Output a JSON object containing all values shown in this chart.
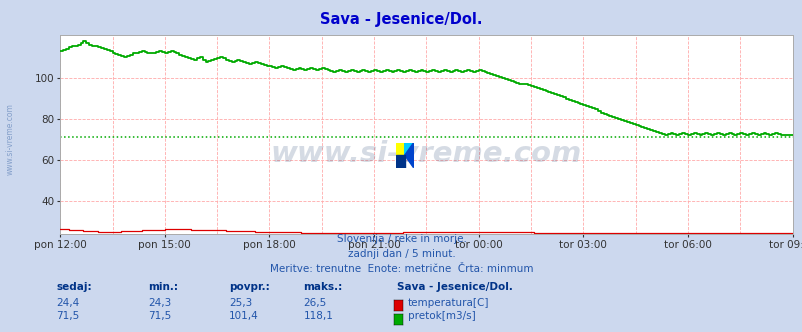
{
  "title": "Sava - Jesenice/Dol.",
  "title_color": "#0000cc",
  "bg_color": "#ccd8ee",
  "plot_bg_color": "#ffffff",
  "grid_color": "#ffaaaa",
  "x_tick_labels": [
    "pon 12:00",
    "pon 15:00",
    "pon 18:00",
    "pon 21:00",
    "tor 00:00",
    "tor 03:00",
    "tor 06:00",
    "tor 09:00"
  ],
  "x_tick_positions": [
    0,
    36,
    72,
    108,
    144,
    180,
    216,
    252
  ],
  "y_ticks": [
    40,
    60,
    80,
    100
  ],
  "y_min": 24.0,
  "y_max": 121.0,
  "temp_color": "#dd0000",
  "flow_color": "#00aa00",
  "avg_line_color": "#00aa00",
  "avg_line_value": 71.5,
  "watermark_text": "www.si-vreme.com",
  "watermark_color": "#1a3a6a",
  "watermark_alpha": 0.18,
  "subtitle1": "Slovenija / reke in morje.",
  "subtitle2": "zadnji dan / 5 minut.",
  "subtitle3": "Meritve: trenutne  Enote: metrične  Črta: minmum",
  "subtitle_color": "#2255aa",
  "table_color": "#2255aa",
  "table_bold_color": "#003388",
  "label_sedaj": "sedaj:",
  "label_min": "min.:",
  "label_povpr": "povpr.:",
  "label_maks": "maks.:",
  "label_station": "Sava - Jesenice/Dol.",
  "temp_sedaj": "24,4",
  "temp_min": "24,3",
  "temp_povpr": "25,3",
  "temp_maks": "26,5",
  "flow_sedaj": "71,5",
  "flow_min": "71,5",
  "flow_povpr": "101,4",
  "flow_maks": "118,1",
  "legend_temp": "temperatura[C]",
  "legend_flow": "pretok[m3/s]",
  "n_points": 253,
  "side_text": "www.si-vreme.com",
  "side_text_color": "#6688bb",
  "flow_steps": [
    [
      0,
      113
    ],
    [
      3,
      115
    ],
    [
      6,
      116
    ],
    [
      8,
      118
    ],
    [
      10,
      116
    ],
    [
      13,
      115
    ],
    [
      17,
      113
    ],
    [
      20,
      111
    ],
    [
      22,
      110
    ],
    [
      25,
      112
    ],
    [
      28,
      113
    ],
    [
      31,
      112
    ],
    [
      34,
      113
    ],
    [
      36,
      112
    ],
    [
      38,
      113
    ],
    [
      40,
      112
    ],
    [
      43,
      110
    ],
    [
      46,
      109
    ],
    [
      48,
      110
    ],
    [
      50,
      108
    ],
    [
      52,
      109
    ],
    [
      55,
      110
    ],
    [
      57,
      109
    ],
    [
      59,
      108
    ],
    [
      61,
      109
    ],
    [
      63,
      108
    ],
    [
      65,
      107
    ],
    [
      67,
      108
    ],
    [
      69,
      107
    ],
    [
      71,
      106
    ],
    [
      74,
      105
    ],
    [
      76,
      106
    ],
    [
      78,
      105
    ],
    [
      80,
      104
    ],
    [
      82,
      105
    ],
    [
      84,
      104
    ],
    [
      86,
      105
    ],
    [
      88,
      104
    ],
    [
      90,
      105
    ],
    [
      92,
      104
    ],
    [
      94,
      103
    ],
    [
      96,
      104
    ],
    [
      98,
      103
    ],
    [
      100,
      104
    ],
    [
      102,
      103
    ],
    [
      104,
      104
    ],
    [
      106,
      103
    ],
    [
      108,
      104
    ],
    [
      110,
      103
    ],
    [
      112,
      104
    ],
    [
      114,
      103
    ],
    [
      116,
      104
    ],
    [
      118,
      103
    ],
    [
      120,
      104
    ],
    [
      122,
      103
    ],
    [
      124,
      104
    ],
    [
      126,
      103
    ],
    [
      128,
      104
    ],
    [
      130,
      103
    ],
    [
      132,
      104
    ],
    [
      134,
      103
    ],
    [
      136,
      104
    ],
    [
      138,
      103
    ],
    [
      140,
      104
    ],
    [
      142,
      103
    ],
    [
      144,
      104
    ],
    [
      146,
      103
    ],
    [
      148,
      102
    ],
    [
      150,
      101
    ],
    [
      152,
      100
    ],
    [
      154,
      99
    ],
    [
      156,
      98
    ],
    [
      158,
      97
    ],
    [
      160,
      97
    ],
    [
      162,
      96
    ],
    [
      164,
      95
    ],
    [
      166,
      94
    ],
    [
      168,
      93
    ],
    [
      170,
      92
    ],
    [
      172,
      91
    ],
    [
      174,
      90
    ],
    [
      176,
      89
    ],
    [
      178,
      88
    ],
    [
      180,
      87
    ],
    [
      182,
      86
    ],
    [
      184,
      85
    ],
    [
      185,
      84
    ],
    [
      186,
      83
    ],
    [
      188,
      82
    ],
    [
      190,
      81
    ],
    [
      192,
      80
    ],
    [
      194,
      79
    ],
    [
      196,
      78
    ],
    [
      198,
      77
    ],
    [
      200,
      76
    ],
    [
      202,
      75
    ],
    [
      204,
      74
    ],
    [
      206,
      73
    ],
    [
      208,
      72
    ],
    [
      210,
      73
    ],
    [
      212,
      72
    ],
    [
      214,
      73
    ],
    [
      216,
      72
    ],
    [
      218,
      73
    ],
    [
      220,
      72
    ],
    [
      222,
      73
    ],
    [
      224,
      72
    ],
    [
      226,
      73
    ],
    [
      228,
      72
    ],
    [
      230,
      73
    ],
    [
      232,
      72
    ],
    [
      234,
      73
    ],
    [
      236,
      72
    ],
    [
      238,
      73
    ],
    [
      240,
      72
    ],
    [
      242,
      73
    ],
    [
      244,
      72
    ],
    [
      246,
      73
    ],
    [
      248,
      72
    ],
    [
      250,
      72
    ],
    [
      252,
      72
    ]
  ],
  "temp_steps": [
    [
      0,
      26.5
    ],
    [
      5,
      26.0
    ],
    [
      10,
      25.5
    ],
    [
      15,
      25.0
    ],
    [
      20,
      25.2
    ],
    [
      25,
      25.5
    ],
    [
      30,
      26.0
    ],
    [
      35,
      26.2
    ],
    [
      40,
      26.5
    ],
    [
      45,
      26.2
    ],
    [
      50,
      26.0
    ],
    [
      55,
      25.8
    ],
    [
      60,
      25.5
    ],
    [
      65,
      25.3
    ],
    [
      70,
      25.1
    ],
    [
      75,
      25.0
    ],
    [
      80,
      24.8
    ],
    [
      85,
      24.7
    ],
    [
      90,
      24.6
    ],
    [
      95,
      24.5
    ],
    [
      100,
      24.4
    ],
    [
      105,
      24.5
    ],
    [
      110,
      24.6
    ],
    [
      115,
      24.7
    ],
    [
      120,
      24.8
    ],
    [
      125,
      24.9
    ],
    [
      130,
      25.0
    ],
    [
      135,
      25.1
    ],
    [
      140,
      25.2
    ],
    [
      145,
      25.1
    ],
    [
      150,
      25.0
    ],
    [
      155,
      24.9
    ],
    [
      160,
      24.8
    ],
    [
      165,
      24.7
    ],
    [
      170,
      24.6
    ],
    [
      175,
      24.5
    ],
    [
      180,
      24.4
    ],
    [
      185,
      24.4
    ],
    [
      190,
      24.4
    ],
    [
      195,
      24.4
    ],
    [
      200,
      24.4
    ],
    [
      205,
      24.4
    ],
    [
      210,
      24.4
    ],
    [
      215,
      24.4
    ],
    [
      220,
      24.4
    ],
    [
      225,
      24.4
    ],
    [
      230,
      24.4
    ],
    [
      235,
      24.4
    ],
    [
      240,
      24.4
    ],
    [
      245,
      24.4
    ],
    [
      250,
      24.4
    ],
    [
      252,
      24.4
    ]
  ]
}
